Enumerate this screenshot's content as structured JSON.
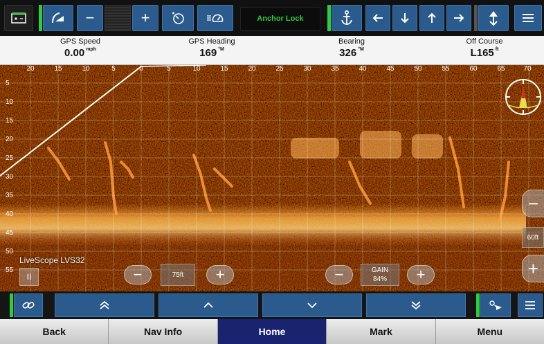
{
  "toolbar": {
    "zoom_out_label": "−",
    "zoom_in_label": "+",
    "anchor_lock_label": "Anchor Lock",
    "icons": [
      "window-fit-icon",
      "sonar-sweep-icon",
      "minus-icon",
      "plus-icon",
      "timer-icon",
      "speedometer-icon",
      "anchor-icon",
      "arrow-left-icon",
      "arrow-down-icon",
      "arrow-up-icon",
      "arrow-right-icon",
      "jump-up-icon",
      "menu-icon"
    ],
    "accent_green": "#2ecc40",
    "button_blue": "#2b5a8c"
  },
  "data_fields": [
    {
      "label": "GPS Speed",
      "value": "0.00",
      "unit": "mph"
    },
    {
      "label": "GPS Heading",
      "value": "169",
      "unit": "°M"
    },
    {
      "label": "Bearing",
      "value": "326",
      "unit": "°M"
    },
    {
      "label": "Off Course",
      "value": "L165",
      "unit": "ft"
    }
  ],
  "sonar": {
    "x_ticks": [
      "20",
      "15",
      "10",
      "5",
      "0",
      "5",
      "10",
      "15",
      "20",
      "25",
      "30",
      "35",
      "40",
      "45",
      "50",
      "55",
      "60",
      "65",
      "70"
    ],
    "y_ticks": [
      "5",
      "10",
      "15",
      "20",
      "25",
      "30",
      "35",
      "40",
      "45",
      "50",
      "55"
    ],
    "source_label": "LiveScope LVS32",
    "pause_label": "II",
    "range_label": "75ft",
    "gain_label": "GAIN",
    "gain_value": "84%",
    "depth_range_label": "60ft",
    "minus_label": "−",
    "plus_label": "+"
  },
  "action_bar": {
    "icons": [
      "link-icon",
      "double-chevron-up-icon",
      "chevron-up-icon",
      "chevron-down-icon",
      "double-chevron-down-icon",
      "waypoint-icon",
      "menu-icon"
    ]
  },
  "nav": {
    "tabs": [
      "Back",
      "Nav Info",
      "Home",
      "Mark",
      "Menu"
    ],
    "active": "Home"
  }
}
